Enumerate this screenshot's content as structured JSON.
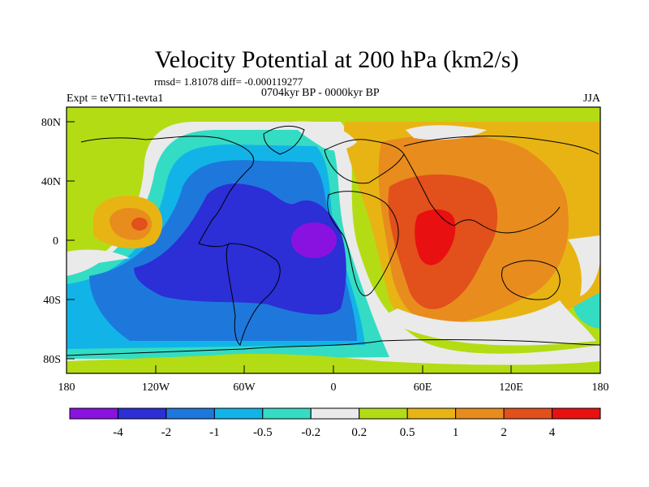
{
  "title": "Velocity Potential at 200 hPa (km2/s)",
  "stats_line": "rmsd= 1.81078 diff= -0.000119277",
  "experiment": "Expt = teVTi1-tevta1",
  "period": "0704kyr BP - 0000kyr BP",
  "season": "JJA",
  "lat_ticks": [
    "80N",
    "40N",
    "0",
    "40S",
    "80S"
  ],
  "lon_ticks": [
    "180",
    "120W",
    "60W",
    "0",
    "60E",
    "120E",
    "180"
  ],
  "colorbar": {
    "labels": [
      "-4",
      "-2",
      "-1",
      "-0.5",
      "-0.2",
      "0.2",
      "0.5",
      "1",
      "2",
      "4"
    ],
    "colors": [
      "#8a12e0",
      "#2c2ed6",
      "#1e78dc",
      "#12b4e8",
      "#34dcc4",
      "#eaeaea",
      "#b4dc14",
      "#e8b414",
      "#e88c1e",
      "#e2501c",
      "#e81010"
    ]
  },
  "map_colors": {
    "ocean_neutral": "#eaeaea",
    "pos_weak": "#b4dc14",
    "pos_mid": "#e8b414",
    "pos_strong": "#e88c1e",
    "pos_vstrong": "#e2501c",
    "pos_max": "#e81010",
    "neg_weak": "#34dcc4",
    "neg_mid": "#12b4e8",
    "neg_strong": "#1e78dc",
    "neg_vstrong": "#2c2ed6",
    "neg_max": "#8a12e0"
  }
}
